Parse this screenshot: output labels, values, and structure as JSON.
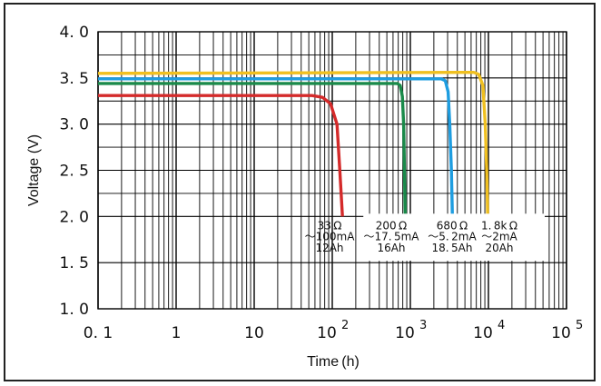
{
  "chart_data": {
    "type": "line",
    "xscale": "log",
    "xlim": [
      0.1,
      100000
    ],
    "ylim": [
      1.0,
      4.0
    ],
    "xlabel": "Time (h)",
    "ylabel": "Voltage (V)",
    "y_ticks": [
      "1. 0",
      "1. 5",
      "2. 0",
      "2. 5",
      "3. 0",
      "3. 5",
      "4. 0"
    ],
    "y_tick_values": [
      1.0,
      1.5,
      2.0,
      2.5,
      3.0,
      3.5,
      4.0
    ],
    "x_ticks": [
      {
        "value": 0.1,
        "label": "0. 1",
        "exp": ""
      },
      {
        "value": 1,
        "label": "1",
        "exp": ""
      },
      {
        "value": 10,
        "label": "10",
        "exp": ""
      },
      {
        "value": 100,
        "label": "10",
        "exp": "2"
      },
      {
        "value": 1000,
        "label": "10",
        "exp": "3"
      },
      {
        "value": 10000,
        "label": "10",
        "exp": "4"
      },
      {
        "value": 100000,
        "label": "10",
        "exp": "5"
      }
    ],
    "grid": true,
    "series": [
      {
        "name": "33Ω ~100mA 12Ah",
        "color": "#d42a2a",
        "points": [
          [
            0.1,
            3.31
          ],
          [
            55,
            3.31
          ],
          [
            75,
            3.29
          ],
          [
            95,
            3.22
          ],
          [
            115,
            3.0
          ],
          [
            125,
            2.5
          ],
          [
            135,
            2.0
          ]
        ]
      },
      {
        "name": "200Ω ~17.5mA 16Ah",
        "color": "#1a8a4a",
        "points": [
          [
            0.1,
            3.44
          ],
          [
            680,
            3.44
          ],
          [
            740,
            3.42
          ],
          [
            790,
            3.3
          ],
          [
            820,
            3.0
          ],
          [
            840,
            2.5
          ],
          [
            860,
            2.0
          ]
        ]
      },
      {
        "name": "680Ω ~5.2mA 18.5Ah",
        "color": "#1e9de0",
        "points": [
          [
            0.1,
            3.49
          ],
          [
            2500,
            3.49
          ],
          [
            2800,
            3.47
          ],
          [
            3050,
            3.35
          ],
          [
            3200,
            3.0
          ],
          [
            3350,
            2.5
          ],
          [
            3450,
            2.0
          ]
        ]
      },
      {
        "name": "1.8kΩ ~2mA 20Ah",
        "color": "#f0c020",
        "points": [
          [
            0.1,
            3.55
          ],
          [
            6500,
            3.56
          ],
          [
            7500,
            3.54
          ],
          [
            8500,
            3.42
          ],
          [
            9100,
            3.0
          ],
          [
            9500,
            2.5
          ],
          [
            9800,
            2.0
          ]
        ]
      }
    ],
    "legend": {
      "placement": "lower-right",
      "columns": [
        {
          "resistance": "33 Ω",
          "current": "～100mA",
          "capacity": "12Ah"
        },
        {
          "resistance": "200 Ω",
          "current": "～17. 5mA",
          "capacity": "16Ah"
        },
        {
          "resistance": "680 Ω",
          "current": "～5. 2mA",
          "capacity": "18. 5Ah"
        },
        {
          "resistance": "1. 8k Ω",
          "current": "～2mA",
          "capacity": "20Ah"
        }
      ]
    }
  }
}
